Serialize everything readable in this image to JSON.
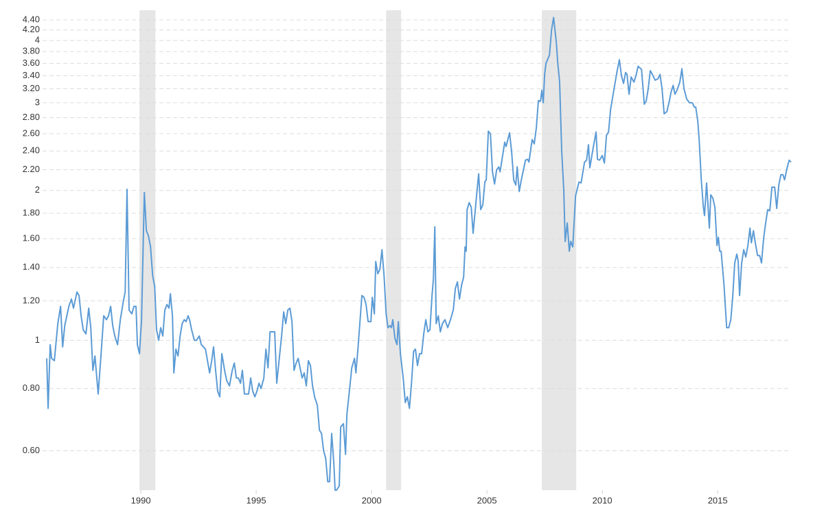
{
  "chart_data": {
    "type": "line",
    "log_scale": true,
    "grid": true,
    "color": "#5b9bd5",
    "shade_color": "#e6e6e6",
    "xlim": [
      1985.74,
      2018.18
    ],
    "xticks": [
      1990,
      1995,
      2000,
      2005,
      2010,
      2015
    ],
    "ylim": [
      0.5,
      4.6
    ],
    "yticks": [
      {
        "value": 0.6,
        "label": "0.60"
      },
      {
        "value": 0.8,
        "label": "0.80"
      },
      1,
      {
        "value": 1.2,
        "label": "1.20"
      },
      {
        "value": 1.4,
        "label": "1.40"
      },
      {
        "value": 1.6,
        "label": "1.60"
      },
      {
        "value": 1.8,
        "label": "1.80"
      },
      2,
      {
        "value": 2.2,
        "label": "2.20"
      },
      {
        "value": 2.4,
        "label": "2.40"
      },
      {
        "value": 2.6,
        "label": "2.60"
      },
      {
        "value": 2.8,
        "label": "2.80"
      },
      3,
      {
        "value": 3.2,
        "label": "3.20"
      },
      {
        "value": 3.4,
        "label": "3.40"
      },
      {
        "value": 3.6,
        "label": "3.60"
      },
      {
        "value": 3.8,
        "label": "3.80"
      },
      4,
      {
        "value": 4.2,
        "label": "4.20"
      },
      {
        "value": 4.4,
        "label": "4.40"
      }
    ],
    "shaded_periods": [
      [
        1989.94,
        1990.63
      ],
      [
        2000.63,
        2001.28
      ],
      [
        2007.38,
        2008.87
      ]
    ],
    "x": [
      1985.92,
      1985.98,
      1986.07,
      1986.13,
      1986.25,
      1986.4,
      1986.52,
      1986.61,
      1986.7,
      1986.88,
      1986.99,
      1987.08,
      1987.23,
      1987.32,
      1987.41,
      1987.5,
      1987.62,
      1987.74,
      1987.83,
      1987.92,
      1988.01,
      1988.15,
      1988.27,
      1988.39,
      1988.51,
      1988.6,
      1988.69,
      1988.78,
      1988.87,
      1988.99,
      1989.11,
      1989.23,
      1989.32,
      1989.4,
      1989.49,
      1989.61,
      1989.7,
      1989.79,
      1989.85,
      1989.94,
      1990.03,
      1990.15,
      1990.24,
      1990.33,
      1990.42,
      1990.51,
      1990.6,
      1990.68,
      1990.77,
      1990.86,
      1990.95,
      1991.04,
      1991.13,
      1991.22,
      1991.28,
      1991.37,
      1991.43,
      1991.52,
      1991.61,
      1991.7,
      1991.79,
      1991.88,
      1991.96,
      1992.05,
      1992.11,
      1992.2,
      1992.32,
      1992.41,
      1992.53,
      1992.62,
      1992.8,
      1992.98,
      1993.07,
      1993.15,
      1993.24,
      1993.33,
      1993.42,
      1993.51,
      1993.63,
      1993.72,
      1993.84,
      1993.96,
      1994.05,
      1994.14,
      1994.23,
      1994.32,
      1994.4,
      1994.49,
      1994.67,
      1994.76,
      1994.85,
      1994.94,
      1995.03,
      1995.12,
      1995.21,
      1995.33,
      1995.42,
      1995.51,
      1995.6,
      1995.8,
      1995.89,
      1996.01,
      1996.1,
      1996.19,
      1996.28,
      1996.37,
      1996.46,
      1996.55,
      1996.64,
      1996.73,
      1996.82,
      1996.9,
      1996.99,
      1997.08,
      1997.17,
      1997.26,
      1997.35,
      1997.44,
      1997.53,
      1997.65,
      1997.74,
      1997.83,
      1997.92,
      1998.01,
      1998.1,
      1998.18,
      1998.27,
      1998.36,
      1998.42,
      1998.48,
      1998.6,
      1998.66,
      1998.78,
      1998.87,
      1998.93,
      1999.05,
      1999.14,
      1999.26,
      1999.32,
      1999.4,
      1999.49,
      1999.58,
      1999.67,
      1999.76,
      1999.85,
      1999.97,
      2000.03,
      2000.12,
      2000.18,
      2000.27,
      2000.36,
      2000.45,
      2000.54,
      2000.63,
      2000.71,
      2000.8,
      2000.86,
      2000.92,
      2001.01,
      2001.1,
      2001.16,
      2001.25,
      2001.37,
      2001.46,
      2001.55,
      2001.64,
      2001.73,
      2001.82,
      2001.9,
      2001.99,
      2002.08,
      2002.17,
      2002.26,
      2002.35,
      2002.44,
      2002.53,
      2002.62,
      2002.68,
      2002.74,
      2002.8,
      2002.89,
      2002.98,
      2003.07,
      2003.18,
      2003.3,
      2003.42,
      2003.54,
      2003.63,
      2003.72,
      2003.81,
      2003.9,
      2003.99,
      2004.05,
      2004.1,
      2004.14,
      2004.23,
      2004.32,
      2004.4,
      2004.49,
      2004.58,
      2004.64,
      2004.73,
      2004.82,
      2004.91,
      2004.97,
      2005.06,
      2005.15,
      2005.24,
      2005.33,
      2005.42,
      2005.51,
      2005.57,
      2005.77,
      2005.83,
      2005.98,
      2006.07,
      2006.16,
      2006.25,
      2006.31,
      2006.4,
      2006.49,
      2006.67,
      2006.76,
      2006.82,
      2006.96,
      2007.05,
      2007.14,
      2007.23,
      2007.32,
      2007.38,
      2007.44,
      2007.5,
      2007.56,
      2007.71,
      2007.8,
      2007.89,
      2008.01,
      2008.07,
      2008.15,
      2008.24,
      2008.33,
      2008.39,
      2008.48,
      2008.57,
      2008.63,
      2008.72,
      2008.84,
      2008.99,
      2009.08,
      2009.23,
      2009.32,
      2009.4,
      2009.46,
      2009.58,
      2009.73,
      2009.79,
      2009.88,
      2010.0,
      2010.09,
      2010.18,
      2010.27,
      2010.36,
      2010.51,
      2010.63,
      2010.74,
      2010.83,
      2010.92,
      2011.01,
      2011.07,
      2011.16,
      2011.25,
      2011.37,
      2011.46,
      2011.55,
      2011.7,
      2011.82,
      2011.9,
      2011.99,
      2012.08,
      2012.17,
      2012.29,
      2012.41,
      2012.5,
      2012.59,
      2012.68,
      2012.8,
      2012.89,
      2012.98,
      2013.07,
      2013.15,
      2013.24,
      2013.36,
      2013.45,
      2013.54,
      2013.66,
      2013.78,
      2013.9,
      2013.99,
      2014.05,
      2014.14,
      2014.2,
      2014.29,
      2014.38,
      2014.43,
      2014.52,
      2014.64,
      2014.7,
      2014.79,
      2014.88,
      2014.97,
      2015.03,
      2015.09,
      2015.15,
      2015.27,
      2015.39,
      2015.48,
      2015.57,
      2015.65,
      2015.74,
      2015.83,
      2015.89,
      2015.95,
      2016.04,
      2016.13,
      2016.22,
      2016.31,
      2016.4,
      2016.46,
      2016.55,
      2016.64,
      2016.73,
      2016.82,
      2016.9,
      2016.99,
      2017.08,
      2017.17,
      2017.26,
      2017.35,
      2017.47,
      2017.56,
      2017.65,
      2017.74,
      2017.83,
      2017.9,
      2018.01,
      2018.1,
      2018.18
    ],
    "values": [
      0.92,
      0.73,
      0.98,
      0.92,
      0.91,
      1.08,
      1.17,
      0.97,
      1.07,
      1.17,
      1.21,
      1.16,
      1.25,
      1.23,
      1.12,
      1.05,
      1.03,
      1.16,
      1.06,
      0.87,
      0.93,
      0.78,
      0.93,
      1.12,
      1.1,
      1.12,
      1.17,
      1.07,
      1.02,
      0.98,
      1.1,
      1.19,
      1.25,
      2.01,
      1.15,
      1.13,
      1.17,
      1.17,
      0.98,
      0.94,
      1.1,
      1.98,
      1.66,
      1.62,
      1.54,
      1.35,
      1.28,
      1.05,
      1.0,
      1.06,
      1.02,
      1.15,
      1.18,
      1.16,
      1.24,
      1.12,
      0.86,
      0.96,
      0.93,
      1.02,
      1.08,
      1.1,
      1.09,
      1.12,
      1.1,
      1.05,
      1.0,
      1.0,
      1.02,
      0.98,
      0.96,
      0.86,
      0.91,
      0.97,
      0.87,
      0.79,
      0.77,
      0.94,
      0.87,
      0.83,
      0.81,
      0.87,
      0.9,
      0.84,
      0.84,
      0.82,
      0.87,
      0.78,
      0.78,
      0.84,
      0.79,
      0.77,
      0.79,
      0.82,
      0.8,
      0.84,
      0.96,
      0.88,
      1.04,
      1.04,
      0.82,
      0.93,
      1.02,
      1.14,
      1.08,
      1.15,
      1.16,
      1.09,
      0.87,
      0.9,
      0.92,
      0.88,
      0.84,
      0.86,
      0.81,
      0.91,
      0.89,
      0.81,
      0.77,
      0.74,
      0.66,
      0.65,
      0.6,
      0.58,
      0.52,
      0.52,
      0.65,
      0.57,
      0.5,
      0.5,
      0.51,
      0.67,
      0.68,
      0.59,
      0.71,
      0.8,
      0.88,
      0.92,
      0.86,
      0.95,
      1.08,
      1.23,
      1.22,
      1.18,
      1.09,
      1.09,
      1.22,
      1.13,
      1.44,
      1.36,
      1.39,
      1.52,
      1.35,
      1.13,
      1.06,
      1.07,
      1.06,
      1.1,
      1.01,
      0.98,
      1.09,
      0.94,
      0.84,
      0.75,
      0.77,
      0.73,
      0.82,
      0.95,
      0.96,
      0.89,
      0.94,
      0.94,
      1.03,
      1.1,
      1.04,
      1.05,
      1.23,
      1.33,
      1.69,
      1.08,
      1.12,
      1.04,
      1.08,
      1.1,
      1.06,
      1.1,
      1.15,
      1.27,
      1.31,
      1.21,
      1.29,
      1.34,
      1.54,
      1.51,
      1.83,
      1.89,
      1.85,
      1.64,
      1.82,
      2.02,
      2.16,
      1.83,
      1.87,
      2.08,
      2.1,
      2.63,
      2.6,
      2.18,
      2.06,
      2.2,
      2.23,
      2.18,
      2.5,
      2.45,
      2.61,
      2.39,
      2.1,
      2.05,
      2.23,
      1.99,
      2.1,
      2.3,
      2.31,
      2.28,
      2.53,
      2.48,
      2.67,
      3.03,
      3.02,
      3.18,
      3.0,
      3.42,
      3.6,
      3.74,
      4.2,
      4.45,
      3.95,
      3.6,
      3.3,
      2.4,
      2.0,
      1.58,
      1.72,
      1.51,
      1.58,
      1.54,
      1.95,
      2.08,
      2.07,
      2.28,
      2.3,
      2.47,
      2.22,
      2.4,
      2.62,
      2.31,
      2.3,
      2.35,
      2.27,
      2.58,
      2.62,
      2.91,
      3.2,
      3.45,
      3.66,
      3.4,
      3.28,
      3.45,
      3.42,
      3.12,
      3.38,
      3.3,
      3.4,
      3.55,
      3.5,
      2.98,
      3.02,
      3.2,
      3.48,
      3.42,
      3.33,
      3.35,
      3.42,
      3.2,
      2.85,
      2.88,
      3.0,
      3.15,
      3.25,
      3.12,
      3.18,
      3.3,
      3.51,
      3.2,
      3.05,
      3.0,
      3.0,
      2.94,
      2.94,
      2.75,
      2.52,
      2.1,
      1.85,
      1.78,
      2.07,
      1.68,
      1.96,
      1.93,
      1.85,
      1.55,
      1.61,
      1.51,
      1.51,
      1.3,
      1.06,
      1.06,
      1.1,
      1.22,
      1.43,
      1.49,
      1.44,
      1.23,
      1.43,
      1.52,
      1.47,
      1.55,
      1.68,
      1.57,
      1.66,
      1.56,
      1.48,
      1.48,
      1.43,
      1.6,
      1.72,
      1.83,
      1.82,
      2.03,
      2.03,
      1.84,
      2.05,
      2.15,
      2.15,
      2.1,
      2.22,
      2.3,
      2.28
    ]
  }
}
